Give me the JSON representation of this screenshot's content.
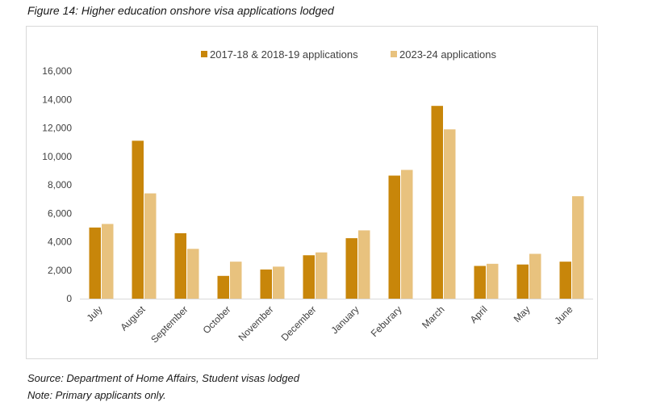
{
  "figure_title": "Figure 14: Higher education onshore visa applications lodged",
  "source_note": "Source: Department of Home Affairs, Student visas lodged",
  "primary_note": "Note: Primary applicants only.",
  "colors": {
    "series1": "#c8860a",
    "series2": "#e8c27e",
    "axis": "#d9d9d9"
  },
  "chart_data": {
    "type": "bar",
    "title": "",
    "xlabel": "",
    "ylabel": "",
    "ylim": [
      0,
      16000
    ],
    "yticks": [
      0,
      2000,
      4000,
      6000,
      8000,
      10000,
      12000,
      14000,
      16000
    ],
    "ytick_labels": [
      "0",
      "2,000",
      "4,000",
      "6,000",
      "8,000",
      "10,000",
      "12,000",
      "14,000",
      "16,000"
    ],
    "grid": false,
    "legend_position": "top",
    "categories": [
      "July",
      "August",
      "September",
      "October",
      "November",
      "December",
      "January",
      "Feburary",
      "March",
      "April",
      "May",
      "June"
    ],
    "series": [
      {
        "name": "2017-18 & 2018-19 applications",
        "values": [
          5000,
          11100,
          4600,
          1600,
          2050,
          3050,
          4250,
          8650,
          13550,
          2300,
          2400,
          2600
        ]
      },
      {
        "name": "2023-24 applications",
        "values": [
          5250,
          7400,
          3500,
          2600,
          2250,
          3250,
          4800,
          9050,
          11900,
          2450,
          3150,
          7200
        ]
      }
    ]
  }
}
